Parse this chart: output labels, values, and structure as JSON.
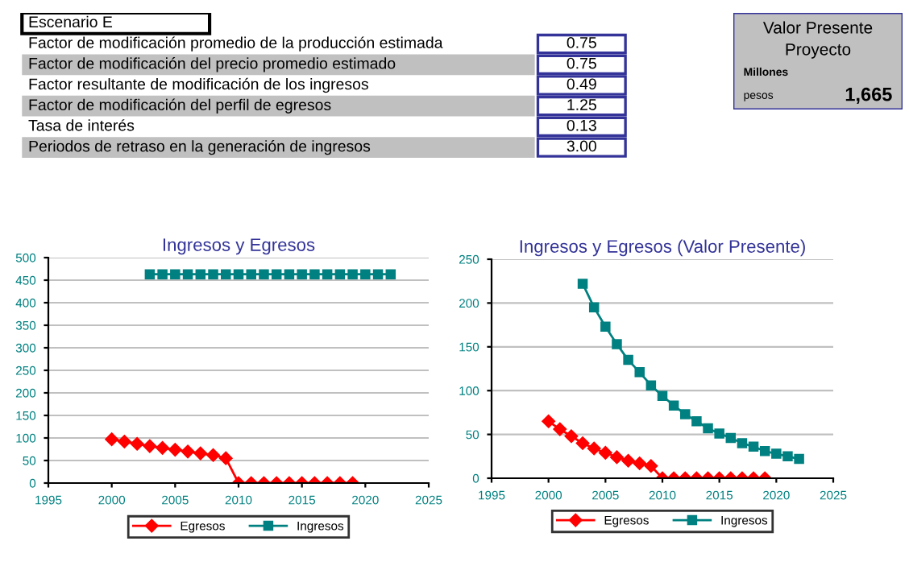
{
  "chart_data": [
    {
      "type": "other",
      "title": "Escenario E",
      "annotations": [
        "Factor de modificación promedio de la producción estimada",
        "0.75",
        "Factor de modificación del precio promedio estimado",
        "0.75",
        "Factor resultante de modificación de los ingresos",
        "0.49",
        "Factor de modificación del perfil de egresos",
        "1.25",
        "Tasa de interés",
        "0.13",
        "Periodos de retraso en la generación de ingresos",
        "3.00"
      ]
    },
    {
      "type": "other",
      "title": "Valor Presente\nProyecto",
      "annotations": [
        "Millones",
        "pesos",
        "1,665"
      ]
    },
    {
      "type": "line",
      "title": "Ingresos y Egresos",
      "xlim": [
        1995,
        2025
      ],
      "xticks": [
        1995,
        2000,
        2005,
        2010,
        2015,
        2020,
        2025
      ],
      "ylim": [
        0,
        500
      ],
      "yticks": [
        0,
        50,
        100,
        150,
        200,
        250,
        300,
        350,
        400,
        450,
        500
      ],
      "grid": "y",
      "legend": "bottom",
      "series": [
        {
          "name": "Egresos",
          "color": "#ff0000",
          "marker": "diamond",
          "x": [
            2000,
            2001,
            2002,
            2003,
            2004,
            2005,
            2006,
            2007,
            2008,
            2009,
            2010,
            2011,
            2012,
            2013,
            2014,
            2015,
            2016,
            2017,
            2018,
            2019
          ],
          "values": [
            97,
            92,
            87,
            82,
            78,
            74,
            70,
            66,
            62,
            55,
            0,
            0,
            0,
            0,
            0,
            0,
            0,
            0,
            0,
            0
          ]
        },
        {
          "name": "Ingresos",
          "color": "#008080",
          "marker": "square",
          "x": [
            2003,
            2004,
            2005,
            2006,
            2007,
            2008,
            2009,
            2010,
            2011,
            2012,
            2013,
            2014,
            2015,
            2016,
            2017,
            2018,
            2019,
            2020,
            2021,
            2022
          ],
          "values": [
            463,
            463,
            463,
            463,
            463,
            463,
            463,
            463,
            463,
            463,
            463,
            463,
            463,
            463,
            463,
            463,
            463,
            463,
            463,
            463
          ]
        }
      ]
    },
    {
      "type": "line",
      "title": "Ingresos y Egresos (Valor Presente)",
      "xlim": [
        1995,
        2025
      ],
      "xticks": [
        1995,
        2000,
        2005,
        2010,
        2015,
        2020,
        2025
      ],
      "ylim": [
        0,
        250
      ],
      "yticks": [
        0,
        50,
        100,
        150,
        200,
        250
      ],
      "grid": "y",
      "legend": "bottom",
      "series": [
        {
          "name": "Egresos",
          "color": "#ff0000",
          "marker": "diamond",
          "x": [
            2000,
            2001,
            2002,
            2003,
            2004,
            2005,
            2006,
            2007,
            2008,
            2009,
            2010,
            2011,
            2012,
            2013,
            2014,
            2015,
            2016,
            2017,
            2018,
            2019
          ],
          "values": [
            65,
            56,
            48,
            40,
            34,
            29,
            24,
            20,
            17,
            14,
            0,
            0,
            0,
            0,
            0,
            0,
            0,
            0,
            0,
            0
          ]
        },
        {
          "name": "Ingresos",
          "color": "#008080",
          "marker": "square",
          "x": [
            2003,
            2004,
            2005,
            2006,
            2007,
            2008,
            2009,
            2010,
            2011,
            2012,
            2013,
            2014,
            2015,
            2016,
            2017,
            2018,
            2019,
            2020,
            2021,
            2022
          ],
          "values": [
            222,
            195,
            173,
            153,
            135,
            121,
            106,
            94,
            83,
            73,
            65,
            57,
            51,
            46,
            40,
            36,
            31,
            28,
            25,
            22
          ]
        }
      ]
    }
  ]
}
